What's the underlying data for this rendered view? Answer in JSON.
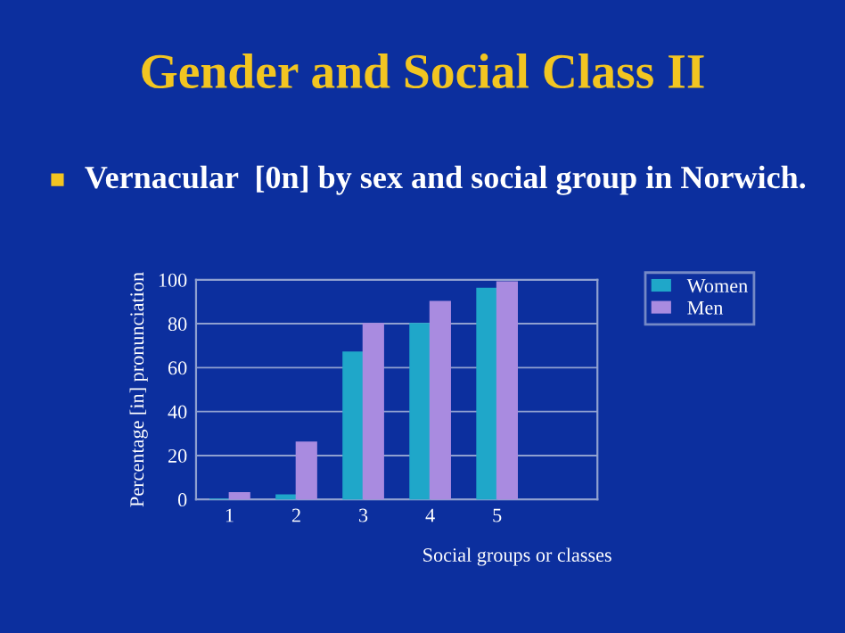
{
  "chart_data": {
    "type": "bar",
    "title": "Gender and Social Class II",
    "subtitle": "Vernacular  [0n] by sex and social group in Norwich.",
    "xlabel": "Social groups or classes",
    "ylabel": "Percentage [in] pronunciation",
    "categories": [
      "1",
      "2",
      "3",
      "4",
      "5",
      null
    ],
    "series": [
      {
        "name": "Women",
        "color": "#1fa7c9",
        "values": [
          0,
          2,
          67,
          80,
          96,
          null
        ]
      },
      {
        "name": "Men",
        "color": "#a98be0",
        "values": [
          3,
          26,
          80,
          90,
          99,
          null
        ]
      }
    ],
    "ylim": [
      0,
      100
    ],
    "yticks": [
      0,
      20,
      40,
      60,
      80,
      100
    ],
    "grid": "y",
    "legend": "top right"
  }
}
